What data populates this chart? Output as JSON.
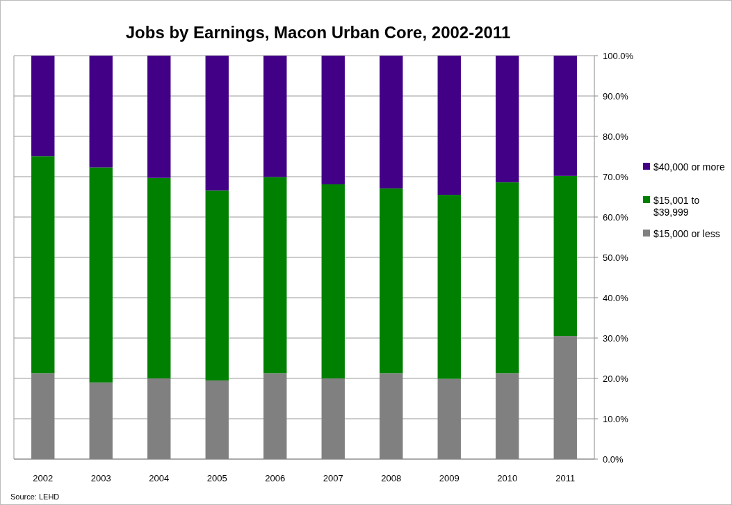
{
  "chart_data": {
    "type": "bar",
    "stacked": true,
    "title": "Jobs by Earnings, Macon Urban Core, 2002-2011",
    "categories": [
      "2002",
      "2003",
      "2004",
      "2005",
      "2006",
      "2007",
      "2008",
      "2009",
      "2010",
      "2011"
    ],
    "series": [
      {
        "name": "$15,000 or less",
        "color": "#808080",
        "values": [
          21.3,
          19.0,
          20.0,
          19.5,
          21.3,
          20.0,
          21.3,
          19.9,
          21.3,
          30.5
        ]
      },
      {
        "name": "$15,001 to $39,999",
        "color": "#008000",
        "values": [
          53.8,
          53.3,
          49.7,
          47.1,
          48.6,
          48.1,
          45.8,
          45.6,
          47.3,
          39.7
        ]
      },
      {
        "name": "$40,000 or more",
        "color": "#420087",
        "values": [
          24.9,
          27.7,
          30.3,
          33.4,
          30.1,
          31.9,
          32.9,
          34.5,
          31.4,
          29.8
        ]
      }
    ],
    "ylim": [
      0,
      100
    ],
    "yticks": [
      {
        "value": 0,
        "label": "0.0%"
      },
      {
        "value": 10,
        "label": "10.0%"
      },
      {
        "value": 20,
        "label": "20.0%"
      },
      {
        "value": 30,
        "label": "30.0%"
      },
      {
        "value": 40,
        "label": "40.0%"
      },
      {
        "value": 50,
        "label": "50.0%"
      },
      {
        "value": 60,
        "label": "60.0%"
      },
      {
        "value": 70,
        "label": "70.0%"
      },
      {
        "value": 80,
        "label": "80.0%"
      },
      {
        "value": 90,
        "label": "90.0%"
      },
      {
        "value": 100,
        "label": "100.0%"
      }
    ],
    "grid": "y",
    "legend": "right",
    "annotations": [
      "Source:  LEHD"
    ]
  }
}
